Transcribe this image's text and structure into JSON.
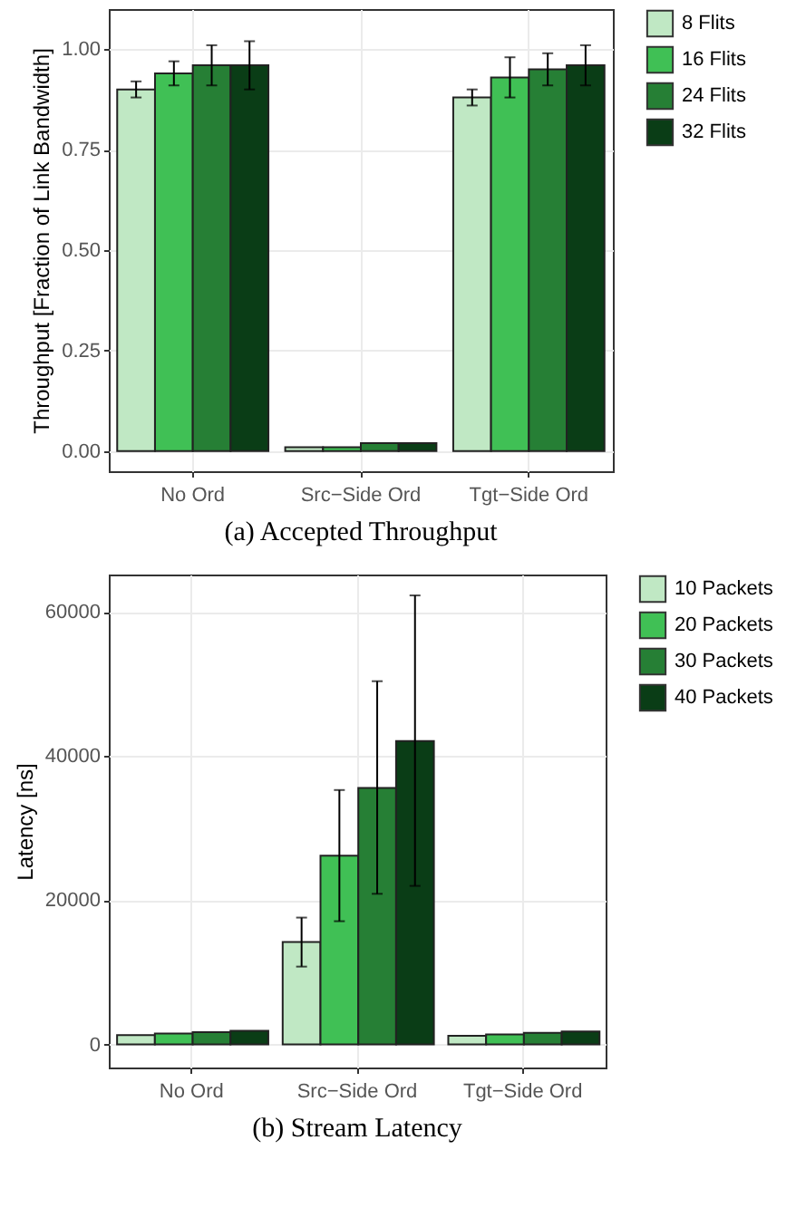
{
  "chart_data": [
    {
      "type": "bar",
      "title": "(a) Accepted Throughput",
      "ylabel": "Throughput [Fraction of Link Bandwidth]",
      "categories": [
        "No Ord",
        "Src−Side Ord",
        "Tgt−Side Ord"
      ],
      "ylim": [
        -0.05,
        1.1
      ],
      "yticks": [
        {
          "value": 0,
          "label": "0.00"
        },
        {
          "value": 0.25,
          "label": "0.25"
        },
        {
          "value": 0.5,
          "label": "0.50"
        },
        {
          "value": 0.75,
          "label": "0.75"
        },
        {
          "value": 1,
          "label": "1.00"
        }
      ],
      "grid": true,
      "legend": "right",
      "series": [
        {
          "name": "8 Flits",
          "color": "#c0e8c4",
          "values": [
            0.9,
            0.01,
            0.88
          ],
          "errors": [
            0.02,
            null,
            0.02
          ]
        },
        {
          "name": "16 Flits",
          "color": "#40c055",
          "values": [
            0.94,
            0.01,
            0.93
          ],
          "errors": [
            0.03,
            null,
            0.05
          ]
        },
        {
          "name": "24 Flits",
          "color": "#267f35",
          "values": [
            0.96,
            0.02,
            0.95
          ],
          "errors": [
            0.05,
            null,
            0.04
          ]
        },
        {
          "name": "32 Flits",
          "color": "#0a3d16",
          "values": [
            0.96,
            0.02,
            0.96
          ],
          "errors": [
            0.06,
            null,
            0.05
          ]
        }
      ]
    },
    {
      "type": "bar",
      "title": "(b) Stream Latency",
      "ylabel": "Latency [ns]",
      "categories": [
        "No Ord",
        "Src−Side Ord",
        "Tgt−Side Ord"
      ],
      "ylim": [
        -3200,
        65200
      ],
      "yticks": [
        0,
        20000,
        40000,
        60000
      ],
      "grid": true,
      "legend": "right",
      "series": [
        {
          "name": "10 Packets",
          "color": "#c0e8c4",
          "values": [
            1300,
            14200,
            1200
          ],
          "errors": [
            null,
            [
              10800,
              17600
            ],
            null
          ]
        },
        {
          "name": "20 Packets",
          "color": "#40c055",
          "values": [
            1500,
            26200,
            1400
          ],
          "errors": [
            null,
            [
              17100,
              35300
            ],
            null
          ]
        },
        {
          "name": "30 Packets",
          "color": "#267f35",
          "values": [
            1700,
            35600,
            1600
          ],
          "errors": [
            null,
            [
              20900,
              50400
            ],
            null
          ]
        },
        {
          "name": "40 Packets",
          "color": "#0a3d16",
          "values": [
            1900,
            42100,
            1800
          ],
          "errors": [
            null,
            [
              22000,
              62300
            ],
            null
          ]
        }
      ]
    }
  ]
}
